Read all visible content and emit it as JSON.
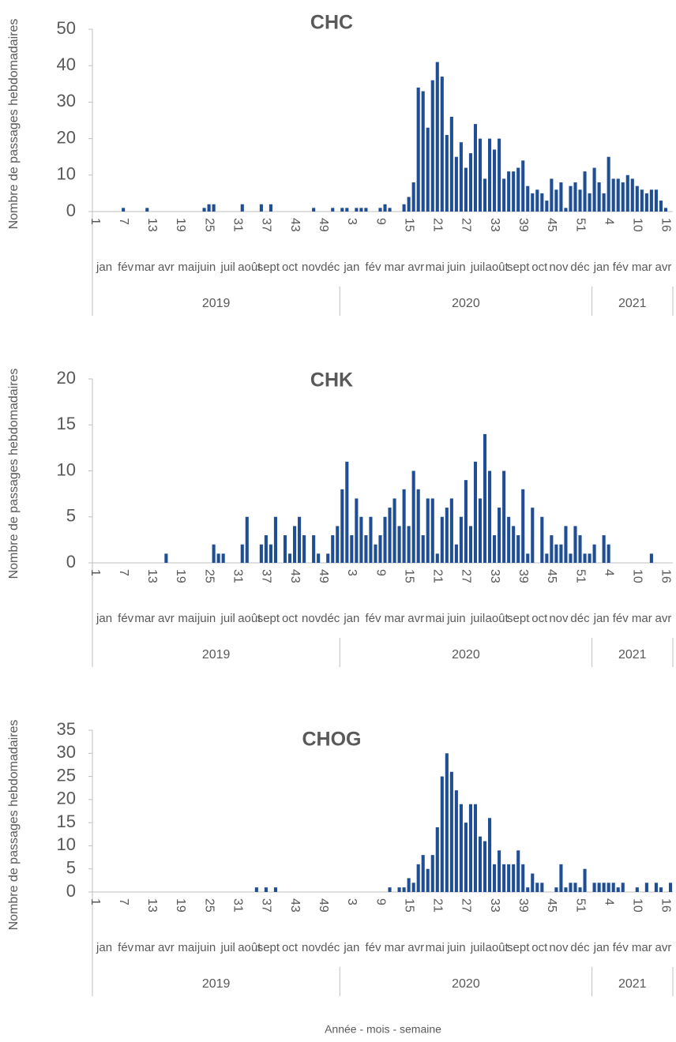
{
  "chart_data": [
    {
      "type": "bar",
      "title": "CHC",
      "y_label": "Nombre de passages hebdomadaires",
      "color": "#1f4e94",
      "ylim": [
        0,
        50
      ],
      "yticks": [
        0,
        10,
        20,
        30,
        40,
        50
      ],
      "categories": [
        "1",
        null,
        null,
        null,
        null,
        null,
        "7",
        null,
        null,
        null,
        null,
        null,
        "13",
        null,
        null,
        null,
        null,
        null,
        "19",
        null,
        null,
        null,
        null,
        null,
        "25",
        null,
        null,
        null,
        null,
        null,
        "31",
        null,
        null,
        null,
        null,
        null,
        "37",
        null,
        null,
        null,
        null,
        null,
        "43",
        null,
        null,
        null,
        null,
        null,
        "49",
        null,
        null,
        null,
        null,
        null,
        "3",
        null,
        null,
        null,
        null,
        null,
        "9",
        null,
        null,
        null,
        null,
        null,
        "15",
        null,
        null,
        null,
        null,
        null,
        "21",
        null,
        null,
        null,
        null,
        null,
        "27",
        null,
        null,
        null,
        null,
        null,
        "33",
        null,
        null,
        null,
        null,
        null,
        "39",
        null,
        null,
        null,
        null,
        null,
        "45",
        null,
        null,
        null,
        null,
        null,
        "51",
        null,
        null,
        null,
        null,
        null,
        "4",
        null,
        null,
        null,
        null,
        null,
        "10",
        null,
        null,
        null,
        null,
        null,
        "16",
        null
      ],
      "x_groups": [
        [
          {
            "label": "jan",
            "span": 5
          },
          {
            "label": "fév",
            "span": 4
          },
          {
            "label": "mar",
            "span": 4
          },
          {
            "label": "avr",
            "span": 5
          },
          {
            "label": "mai",
            "span": 4
          },
          {
            "label": "juin",
            "span": 4
          },
          {
            "label": "juil",
            "span": 5
          },
          {
            "label": "août",
            "span": 4
          },
          {
            "label": "sept",
            "span": 4
          },
          {
            "label": "oct",
            "span": 5
          },
          {
            "label": "nov",
            "span": 4
          },
          {
            "label": "déc",
            "span": 4
          },
          {
            "label": "jan",
            "span": 5
          },
          {
            "label": "fév",
            "span": 4
          },
          {
            "label": "mar",
            "span": 5
          },
          {
            "label": "avr",
            "span": 4
          },
          {
            "label": "mai",
            "span": 4
          },
          {
            "label": "juin",
            "span": 5
          },
          {
            "label": "juil",
            "span": 4
          },
          {
            "label": "août",
            "span": 4
          },
          {
            "label": "sept",
            "span": 5
          },
          {
            "label": "oct",
            "span": 4
          },
          {
            "label": "nov",
            "span": 4
          },
          {
            "label": "déc",
            "span": 5
          },
          {
            "label": "jan",
            "span": 4
          },
          {
            "label": "fév",
            "span": 4
          },
          {
            "label": "mar",
            "span": 5
          },
          {
            "label": "avr",
            "span": 4
          }
        ],
        [
          {
            "label": "2019",
            "span": 52
          },
          {
            "label": "2020",
            "span": 53
          },
          {
            "label": "2021",
            "span": 17
          }
        ]
      ],
      "values": [
        0,
        0,
        0,
        0,
        0,
        0,
        1,
        0,
        0,
        0,
        0,
        1,
        0,
        0,
        0,
        0,
        0,
        0,
        0,
        0,
        0,
        0,
        0,
        1,
        2,
        2,
        0,
        0,
        0,
        0,
        0,
        2,
        0,
        0,
        0,
        2,
        0,
        2,
        0,
        0,
        0,
        0,
        0,
        0,
        0,
        0,
        1,
        0,
        0,
        0,
        1,
        0,
        1,
        1,
        0,
        1,
        1,
        1,
        0,
        0,
        1,
        2,
        1,
        0,
        0,
        2,
        4,
        8,
        34,
        33,
        23,
        36,
        41,
        37,
        21,
        26,
        15,
        19,
        12,
        16,
        24,
        20,
        9,
        20,
        17,
        20,
        9,
        11,
        11,
        12,
        14,
        7,
        5,
        6,
        5,
        3,
        9,
        6,
        8,
        1,
        7,
        8,
        6,
        11,
        5,
        12,
        8,
        5,
        15,
        9,
        9,
        8,
        10,
        9,
        7,
        6,
        5,
        6,
        6,
        3,
        1,
        0
      ]
    },
    {
      "type": "bar",
      "title": "CHK",
      "y_label": "Nombre de passages hebdomadaires",
      "color": "#1f4e94",
      "ylim": [
        0,
        20
      ],
      "yticks": [
        0,
        5,
        10,
        15,
        20
      ],
      "categories": [
        "1",
        null,
        null,
        null,
        null,
        null,
        "7",
        null,
        null,
        null,
        null,
        null,
        "13",
        null,
        null,
        null,
        null,
        null,
        "19",
        null,
        null,
        null,
        null,
        null,
        "25",
        null,
        null,
        null,
        null,
        null,
        "31",
        null,
        null,
        null,
        null,
        null,
        "37",
        null,
        null,
        null,
        null,
        null,
        "43",
        null,
        null,
        null,
        null,
        null,
        "49",
        null,
        null,
        null,
        null,
        null,
        "3",
        null,
        null,
        null,
        null,
        null,
        "9",
        null,
        null,
        null,
        null,
        null,
        "15",
        null,
        null,
        null,
        null,
        null,
        "21",
        null,
        null,
        null,
        null,
        null,
        "27",
        null,
        null,
        null,
        null,
        null,
        "33",
        null,
        null,
        null,
        null,
        null,
        "39",
        null,
        null,
        null,
        null,
        null,
        "45",
        null,
        null,
        null,
        null,
        null,
        "51",
        null,
        null,
        null,
        null,
        null,
        "4",
        null,
        null,
        null,
        null,
        null,
        "10",
        null,
        null,
        null,
        null,
        null,
        "16",
        null
      ],
      "x_groups": [
        [
          {
            "label": "jan",
            "span": 5
          },
          {
            "label": "fév",
            "span": 4
          },
          {
            "label": "mar",
            "span": 4
          },
          {
            "label": "avr",
            "span": 5
          },
          {
            "label": "mai",
            "span": 4
          },
          {
            "label": "juin",
            "span": 4
          },
          {
            "label": "juil",
            "span": 5
          },
          {
            "label": "août",
            "span": 4
          },
          {
            "label": "sept",
            "span": 4
          },
          {
            "label": "oct",
            "span": 5
          },
          {
            "label": "nov",
            "span": 4
          },
          {
            "label": "déc",
            "span": 4
          },
          {
            "label": "jan",
            "span": 5
          },
          {
            "label": "fév",
            "span": 4
          },
          {
            "label": "mar",
            "span": 5
          },
          {
            "label": "avr",
            "span": 4
          },
          {
            "label": "mai",
            "span": 4
          },
          {
            "label": "juin",
            "span": 5
          },
          {
            "label": "juil",
            "span": 4
          },
          {
            "label": "août",
            "span": 4
          },
          {
            "label": "sept",
            "span": 5
          },
          {
            "label": "oct",
            "span": 4
          },
          {
            "label": "nov",
            "span": 4
          },
          {
            "label": "déc",
            "span": 5
          },
          {
            "label": "jan",
            "span": 4
          },
          {
            "label": "fév",
            "span": 4
          },
          {
            "label": "mar",
            "span": 5
          },
          {
            "label": "avr",
            "span": 4
          }
        ],
        [
          {
            "label": "2019",
            "span": 52
          },
          {
            "label": "2020",
            "span": 53
          },
          {
            "label": "2021",
            "span": 17
          }
        ]
      ],
      "values": [
        0,
        0,
        0,
        0,
        0,
        0,
        0,
        0,
        0,
        0,
        0,
        0,
        0,
        0,
        0,
        1,
        0,
        0,
        0,
        0,
        0,
        0,
        0,
        0,
        0,
        2,
        1,
        1,
        0,
        0,
        0,
        2,
        5,
        0,
        0,
        2,
        3,
        2,
        5,
        0,
        3,
        1,
        4,
        5,
        3,
        0,
        3,
        1,
        0,
        1,
        3,
        4,
        8,
        11,
        3,
        7,
        5,
        3,
        5,
        2,
        3,
        5,
        6,
        7,
        4,
        8,
        4,
        10,
        8,
        3,
        7,
        7,
        1,
        5,
        6,
        7,
        2,
        5,
        9,
        4,
        11,
        7,
        14,
        10,
        3,
        6,
        10,
        5,
        4,
        3,
        8,
        1,
        6,
        0,
        5,
        1,
        3,
        2,
        2,
        4,
        1,
        4,
        3,
        1,
        1,
        2,
        0,
        3,
        2,
        0,
        0,
        0,
        0,
        0,
        0,
        0,
        0,
        1,
        0,
        0,
        0,
        0
      ]
    },
    {
      "type": "bar",
      "title": "CHOG",
      "y_label": "Nombre de passages hebdomadaires",
      "x_label": "Année - mois - semaine",
      "color": "#1f4e94",
      "ylim": [
        0,
        35
      ],
      "yticks": [
        0,
        5,
        10,
        15,
        20,
        25,
        30,
        35
      ],
      "categories": [
        "1",
        null,
        null,
        null,
        null,
        null,
        "7",
        null,
        null,
        null,
        null,
        null,
        "13",
        null,
        null,
        null,
        null,
        null,
        "19",
        null,
        null,
        null,
        null,
        null,
        "25",
        null,
        null,
        null,
        null,
        null,
        "31",
        null,
        null,
        null,
        null,
        null,
        "37",
        null,
        null,
        null,
        null,
        null,
        "43",
        null,
        null,
        null,
        null,
        null,
        "49",
        null,
        null,
        null,
        null,
        null,
        "3",
        null,
        null,
        null,
        null,
        null,
        "9",
        null,
        null,
        null,
        null,
        null,
        "15",
        null,
        null,
        null,
        null,
        null,
        "21",
        null,
        null,
        null,
        null,
        null,
        "27",
        null,
        null,
        null,
        null,
        null,
        "33",
        null,
        null,
        null,
        null,
        null,
        "39",
        null,
        null,
        null,
        null,
        null,
        "45",
        null,
        null,
        null,
        null,
        null,
        "51",
        null,
        null,
        null,
        null,
        null,
        "4",
        null,
        null,
        null,
        null,
        null,
        "10",
        null,
        null,
        null,
        null,
        null,
        "16",
        null
      ],
      "x_groups": [
        [
          {
            "label": "jan",
            "span": 5
          },
          {
            "label": "fév",
            "span": 4
          },
          {
            "label": "mar",
            "span": 4
          },
          {
            "label": "avr",
            "span": 5
          },
          {
            "label": "mai",
            "span": 4
          },
          {
            "label": "juin",
            "span": 4
          },
          {
            "label": "juil",
            "span": 5
          },
          {
            "label": "août",
            "span": 4
          },
          {
            "label": "sept",
            "span": 4
          },
          {
            "label": "oct",
            "span": 5
          },
          {
            "label": "nov",
            "span": 4
          },
          {
            "label": "déc",
            "span": 4
          },
          {
            "label": "jan",
            "span": 5
          },
          {
            "label": "fév",
            "span": 4
          },
          {
            "label": "mar",
            "span": 5
          },
          {
            "label": "avr",
            "span": 4
          },
          {
            "label": "mai",
            "span": 4
          },
          {
            "label": "juin",
            "span": 5
          },
          {
            "label": "juil",
            "span": 4
          },
          {
            "label": "août",
            "span": 4
          },
          {
            "label": "sept",
            "span": 5
          },
          {
            "label": "oct",
            "span": 4
          },
          {
            "label": "nov",
            "span": 4
          },
          {
            "label": "déc",
            "span": 5
          },
          {
            "label": "jan",
            "span": 4
          },
          {
            "label": "fév",
            "span": 4
          },
          {
            "label": "mar",
            "span": 5
          },
          {
            "label": "avr",
            "span": 4
          }
        ],
        [
          {
            "label": "2019",
            "span": 52
          },
          {
            "label": "2020",
            "span": 53
          },
          {
            "label": "2021",
            "span": 17
          }
        ]
      ],
      "values": [
        0,
        0,
        0,
        0,
        0,
        0,
        0,
        0,
        0,
        0,
        0,
        0,
        0,
        0,
        0,
        0,
        0,
        0,
        0,
        0,
        0,
        0,
        0,
        0,
        0,
        0,
        0,
        0,
        0,
        0,
        0,
        0,
        0,
        0,
        1,
        0,
        1,
        0,
        1,
        0,
        0,
        0,
        0,
        0,
        0,
        0,
        0,
        0,
        0,
        0,
        0,
        0,
        0,
        0,
        0,
        0,
        0,
        0,
        0,
        0,
        0,
        0,
        1,
        0,
        1,
        1,
        3,
        2,
        6,
        8,
        5,
        8,
        14,
        25,
        30,
        26,
        22,
        19,
        15,
        19,
        19,
        12,
        11,
        16,
        6,
        9,
        6,
        6,
        6,
        9,
        6,
        1,
        4,
        2,
        2,
        0,
        0,
        1,
        6,
        1,
        2,
        2,
        1,
        5,
        0,
        2,
        2,
        2,
        2,
        2,
        1,
        2,
        0,
        0,
        1,
        0,
        2,
        0,
        2,
        1,
        0,
        2
      ]
    }
  ]
}
